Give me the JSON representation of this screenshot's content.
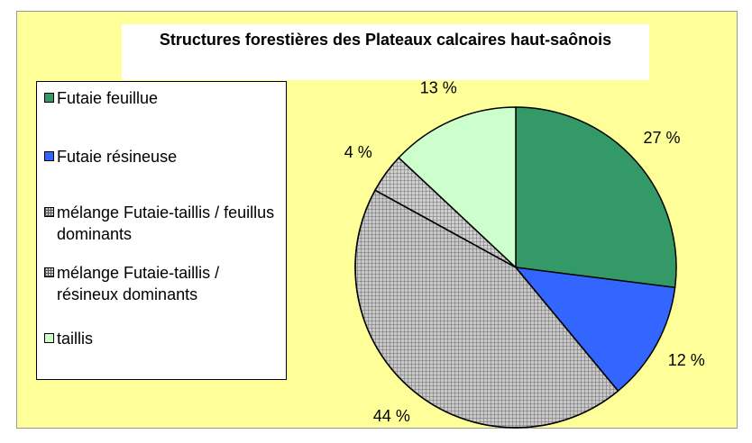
{
  "chart_data": {
    "type": "pie",
    "title": "Structures forestières des Plateaux calcaires haut-saônois",
    "categories": [
      "Futaie feuillue",
      "Futaie résineuse",
      "mélange Futaie-taillis / feuillus dominants",
      "mélange Futaie-taillis / résineux dominants",
      "taillis"
    ],
    "values": [
      27,
      12,
      44,
      4,
      13
    ],
    "value_labels": [
      "27 %",
      "12 %",
      "44 %",
      "4 %",
      "13 %"
    ],
    "colors": [
      "#339966",
      "#3366ff",
      "#c8c8c8",
      "#d0d0d0",
      "#ccffcc"
    ],
    "hatch": [
      false,
      false,
      true,
      true,
      false
    ],
    "legend": "left"
  }
}
